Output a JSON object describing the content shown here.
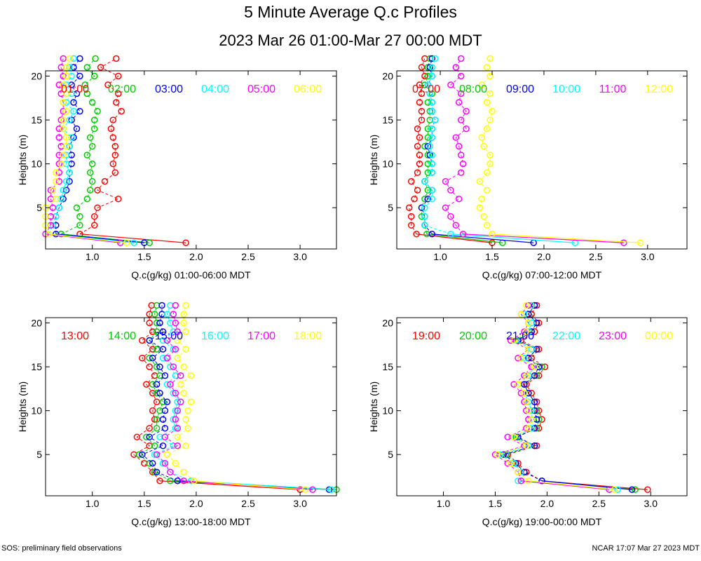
{
  "title": "5 Minute Average Q.c Profiles",
  "subtitle": "2023 Mar 26 01:00-Mar 27 00:00 MDT",
  "footer_left": "SOS: preliminary field observations",
  "footer_right": "NCAR 17:07 Mar 27 2023 MDT",
  "chart_data": [
    {
      "type": "scatter",
      "xlabel": "Q.c(g/kg) 01:00-06:00 MDT",
      "ylabel": "Heights (m)",
      "xlim": [
        0.55,
        3.35
      ],
      "ylim": [
        0.3,
        20.6
      ],
      "xticks": [
        1.0,
        1.5,
        2.0,
        2.5,
        3.0
      ],
      "yticks": [
        5,
        10,
        15,
        20
      ],
      "series": [
        {
          "name": "01:00",
          "color": "#ff0000",
          "x": [
            1.9,
            0.88,
            1.02,
            1.02,
            1.05,
            1.25,
            1.05,
            1.12,
            1.22,
            1.2,
            1.22,
            1.22,
            1.2,
            1.18,
            1.2,
            1.28,
            1.23,
            1.25,
            1.15,
            1.25,
            1.08,
            1.23
          ]
        },
        {
          "name": "02:00",
          "color": "#00cc00",
          "x": [
            1.55,
            0.7,
            0.88,
            0.88,
            0.85,
            0.95,
            0.98,
            1.0,
            0.98,
            1.0,
            0.95,
            1.0,
            0.98,
            1.02,
            1.02,
            1.05,
            1.0,
            0.95,
            0.93,
            1.02,
            0.95,
            1.03
          ]
        },
        {
          "name": "03:00",
          "color": "#0000ff",
          "x": [
            1.5,
            0.65,
            0.65,
            0.65,
            0.68,
            0.72,
            0.75,
            0.78,
            0.78,
            0.8,
            0.8,
            0.78,
            0.82,
            0.85,
            0.8,
            0.88,
            0.82,
            0.85,
            0.8,
            0.88,
            0.82,
            0.88
          ]
        },
        {
          "name": "04:00",
          "color": "#00ffff",
          "x": [
            1.4,
            0.58,
            0.62,
            0.65,
            0.68,
            0.7,
            0.72,
            0.75,
            0.78,
            0.75,
            0.75,
            0.78,
            0.8,
            0.72,
            0.78,
            0.82,
            0.75,
            0.8,
            0.75,
            0.8,
            0.78,
            0.82
          ]
        },
        {
          "name": "05:00",
          "color": "#ff00ff",
          "x": [
            1.27,
            0.55,
            0.6,
            0.6,
            0.62,
            0.6,
            0.6,
            0.68,
            0.68,
            0.68,
            0.68,
            0.7,
            0.68,
            0.68,
            0.7,
            0.72,
            0.72,
            0.7,
            0.68,
            0.72,
            0.7,
            0.72
          ]
        },
        {
          "name": "06:00",
          "color": "#ffff00",
          "x": [
            1.33,
            0.58,
            0.55,
            0.55,
            0.55,
            0.65,
            0.62,
            0.65,
            0.65,
            0.7,
            0.72,
            0.75,
            0.75,
            0.72,
            0.72,
            0.75,
            0.72,
            0.75,
            0.72,
            0.75,
            0.75,
            0.78
          ]
        }
      ]
    },
    {
      "type": "scatter",
      "xlabel": "Q.c(g/kg) 07:00-12:00 MDT",
      "ylabel": "Heights (m)",
      "xlim": [
        0.58,
        3.38
      ],
      "ylim": [
        0.3,
        20.6
      ],
      "xticks": [
        1.0,
        1.5,
        2.0,
        2.5,
        3.0
      ],
      "yticks": [
        5,
        10,
        15,
        20
      ],
      "series": [
        {
          "name": "07:00",
          "color": "#ff0000",
          "x": [
            1.5,
            0.77,
            0.72,
            0.72,
            0.7,
            0.75,
            0.78,
            0.72,
            0.78,
            0.8,
            0.8,
            0.78,
            0.8,
            0.78,
            0.82,
            0.82,
            0.8,
            0.82,
            0.8,
            0.85,
            0.82,
            0.85
          ]
        },
        {
          "name": "08:00",
          "color": "#00cc00",
          "x": [
            1.6,
            0.87,
            0.85,
            0.82,
            0.82,
            0.85,
            0.88,
            0.85,
            0.88,
            0.88,
            0.88,
            0.85,
            0.88,
            0.88,
            0.9,
            0.9,
            0.88,
            0.92,
            0.85,
            0.88,
            0.88,
            0.9
          ]
        },
        {
          "name": "09:00",
          "color": "#0000ff",
          "x": [
            1.9,
            0.92,
            0.85,
            0.85,
            0.82,
            0.88,
            0.92,
            0.85,
            0.92,
            0.92,
            0.9,
            0.88,
            0.92,
            0.92,
            0.95,
            0.92,
            0.92,
            0.9,
            0.88,
            0.92,
            0.9,
            0.92
          ]
        },
        {
          "name": "10:00",
          "color": "#00ffff",
          "x": [
            2.3,
            1.1,
            0.85,
            0.85,
            0.85,
            0.92,
            0.92,
            0.85,
            0.92,
            0.92,
            0.92,
            0.9,
            0.92,
            0.92,
            0.95,
            0.92,
            0.92,
            0.9,
            0.88,
            0.92,
            0.92,
            0.95
          ]
        },
        {
          "name": "11:00",
          "color": "#ff00ff",
          "x": [
            2.77,
            1.22,
            1.15,
            1.1,
            1.05,
            1.18,
            1.1,
            1.05,
            1.2,
            1.22,
            1.2,
            1.18,
            1.15,
            1.25,
            1.2,
            1.25,
            1.18,
            1.2,
            1.1,
            1.2,
            1.15,
            1.2
          ]
        },
        {
          "name": "12:00",
          "color": "#ffff00",
          "x": [
            2.93,
            1.5,
            1.45,
            1.42,
            1.38,
            1.4,
            1.45,
            1.38,
            1.45,
            1.48,
            1.48,
            1.42,
            1.4,
            1.45,
            1.48,
            1.5,
            1.45,
            1.48,
            1.4,
            1.48,
            1.45,
            1.48
          ]
        }
      ]
    },
    {
      "type": "scatter",
      "xlabel": "Q.c(g/kg) 13:00-18:00 MDT",
      "ylabel": "Heights (m)",
      "xlim": [
        0.55,
        3.35
      ],
      "ylim": [
        0.3,
        20.6
      ],
      "xticks": [
        1.0,
        1.5,
        2.0,
        2.5,
        3.0
      ],
      "yticks": [
        5,
        10,
        15,
        20
      ],
      "series": [
        {
          "name": "13:00",
          "color": "#ff0000",
          "x": [
            3.0,
            1.65,
            1.58,
            1.5,
            1.4,
            1.55,
            1.43,
            1.55,
            1.6,
            1.58,
            1.62,
            1.58,
            1.52,
            1.6,
            1.55,
            1.48,
            1.58,
            1.48,
            1.58,
            1.55,
            1.55,
            1.57
          ]
        },
        {
          "name": "14:00",
          "color": "#00cc00",
          "x": [
            3.35,
            1.75,
            1.6,
            1.55,
            1.45,
            1.6,
            1.52,
            1.62,
            1.62,
            1.65,
            1.68,
            1.62,
            1.58,
            1.65,
            1.62,
            1.55,
            1.62,
            1.55,
            1.62,
            1.62,
            1.6,
            1.62
          ]
        },
        {
          "name": "15:00",
          "color": "#0000ff",
          "x": [
            3.28,
            1.82,
            1.62,
            1.58,
            1.48,
            1.68,
            1.55,
            1.7,
            1.68,
            1.7,
            1.72,
            1.65,
            1.62,
            1.7,
            1.65,
            1.58,
            1.68,
            1.55,
            1.68,
            1.65,
            1.67,
            1.67
          ]
        },
        {
          "name": "16:00",
          "color": "#00ffff",
          "x": [
            3.3,
            1.95,
            1.75,
            1.68,
            1.6,
            1.78,
            1.65,
            1.8,
            1.78,
            1.8,
            1.82,
            1.78,
            1.72,
            1.8,
            1.75,
            1.68,
            1.78,
            1.68,
            1.78,
            1.75,
            1.72,
            1.75
          ]
        },
        {
          "name": "17:00",
          "color": "#ff00ff",
          "x": [
            3.12,
            1.88,
            1.75,
            1.7,
            1.62,
            1.82,
            1.7,
            1.82,
            1.8,
            1.82,
            1.85,
            1.8,
            1.75,
            1.85,
            1.78,
            1.72,
            1.8,
            1.72,
            1.82,
            1.8,
            1.78,
            1.8
          ]
        },
        {
          "name": "18:00",
          "color": "#ffff00",
          "x": [
            3.05,
            1.98,
            1.88,
            1.8,
            1.72,
            1.9,
            1.82,
            1.92,
            1.9,
            1.92,
            1.95,
            1.88,
            1.85,
            1.95,
            1.88,
            1.82,
            1.9,
            1.82,
            1.9,
            1.88,
            1.88,
            1.9
          ]
        }
      ]
    },
    {
      "type": "scatter",
      "xlabel": "Q.c(g/kg) 19:00-00:00 MDT",
      "ylabel": "Heights (m)",
      "xlim": [
        0.55,
        3.35
      ],
      "ylim": [
        0.3,
        20.6
      ],
      "xticks": [
        1.0,
        1.5,
        2.0,
        2.5,
        3.0
      ],
      "yticks": [
        5,
        10,
        15,
        20
      ],
      "series": [
        {
          "name": "19:00",
          "color": "#ff0000",
          "x": [
            2.97,
            1.95,
            1.8,
            1.72,
            1.62,
            1.9,
            1.68,
            1.92,
            1.95,
            1.92,
            1.9,
            1.85,
            1.8,
            1.92,
            1.98,
            1.85,
            1.92,
            1.75,
            1.88,
            1.92,
            1.85,
            1.9
          ]
        },
        {
          "name": "20:00",
          "color": "#00cc00",
          "x": [
            2.85,
            1.95,
            1.78,
            1.7,
            1.6,
            1.88,
            1.7,
            1.9,
            1.92,
            1.9,
            1.88,
            1.82,
            1.78,
            1.9,
            1.95,
            1.82,
            1.9,
            1.72,
            1.85,
            1.9,
            1.82,
            1.88
          ]
        },
        {
          "name": "21:00",
          "color": "#0000ff",
          "x": [
            2.82,
            1.95,
            1.78,
            1.7,
            1.58,
            1.88,
            1.72,
            1.88,
            1.9,
            1.88,
            1.88,
            1.82,
            1.78,
            1.88,
            1.92,
            1.82,
            1.9,
            1.72,
            1.85,
            1.9,
            1.82,
            1.88
          ]
        },
        {
          "name": "22:00",
          "color": "#00ffff",
          "x": [
            2.68,
            1.72,
            1.75,
            1.68,
            1.55,
            1.82,
            1.68,
            1.85,
            1.85,
            1.85,
            1.82,
            1.78,
            1.72,
            1.82,
            1.88,
            1.78,
            1.85,
            1.7,
            1.82,
            1.85,
            1.78,
            1.85
          ]
        },
        {
          "name": "23:00",
          "color": "#ff00ff",
          "x": [
            2.6,
            1.75,
            1.72,
            1.62,
            1.5,
            1.78,
            1.62,
            1.8,
            1.82,
            1.8,
            1.78,
            1.75,
            1.68,
            1.78,
            1.85,
            1.72,
            1.82,
            1.65,
            1.78,
            1.82,
            1.75,
            1.82
          ]
        },
        {
          "name": "00:00",
          "color": "#ffff00",
          "x": [
            2.65,
            1.82,
            1.72,
            1.65,
            1.52,
            1.8,
            1.68,
            1.82,
            1.85,
            1.82,
            1.8,
            1.78,
            1.72,
            1.8,
            1.88,
            1.75,
            1.82,
            1.68,
            1.8,
            1.82,
            1.75,
            1.8
          ]
        }
      ]
    }
  ]
}
